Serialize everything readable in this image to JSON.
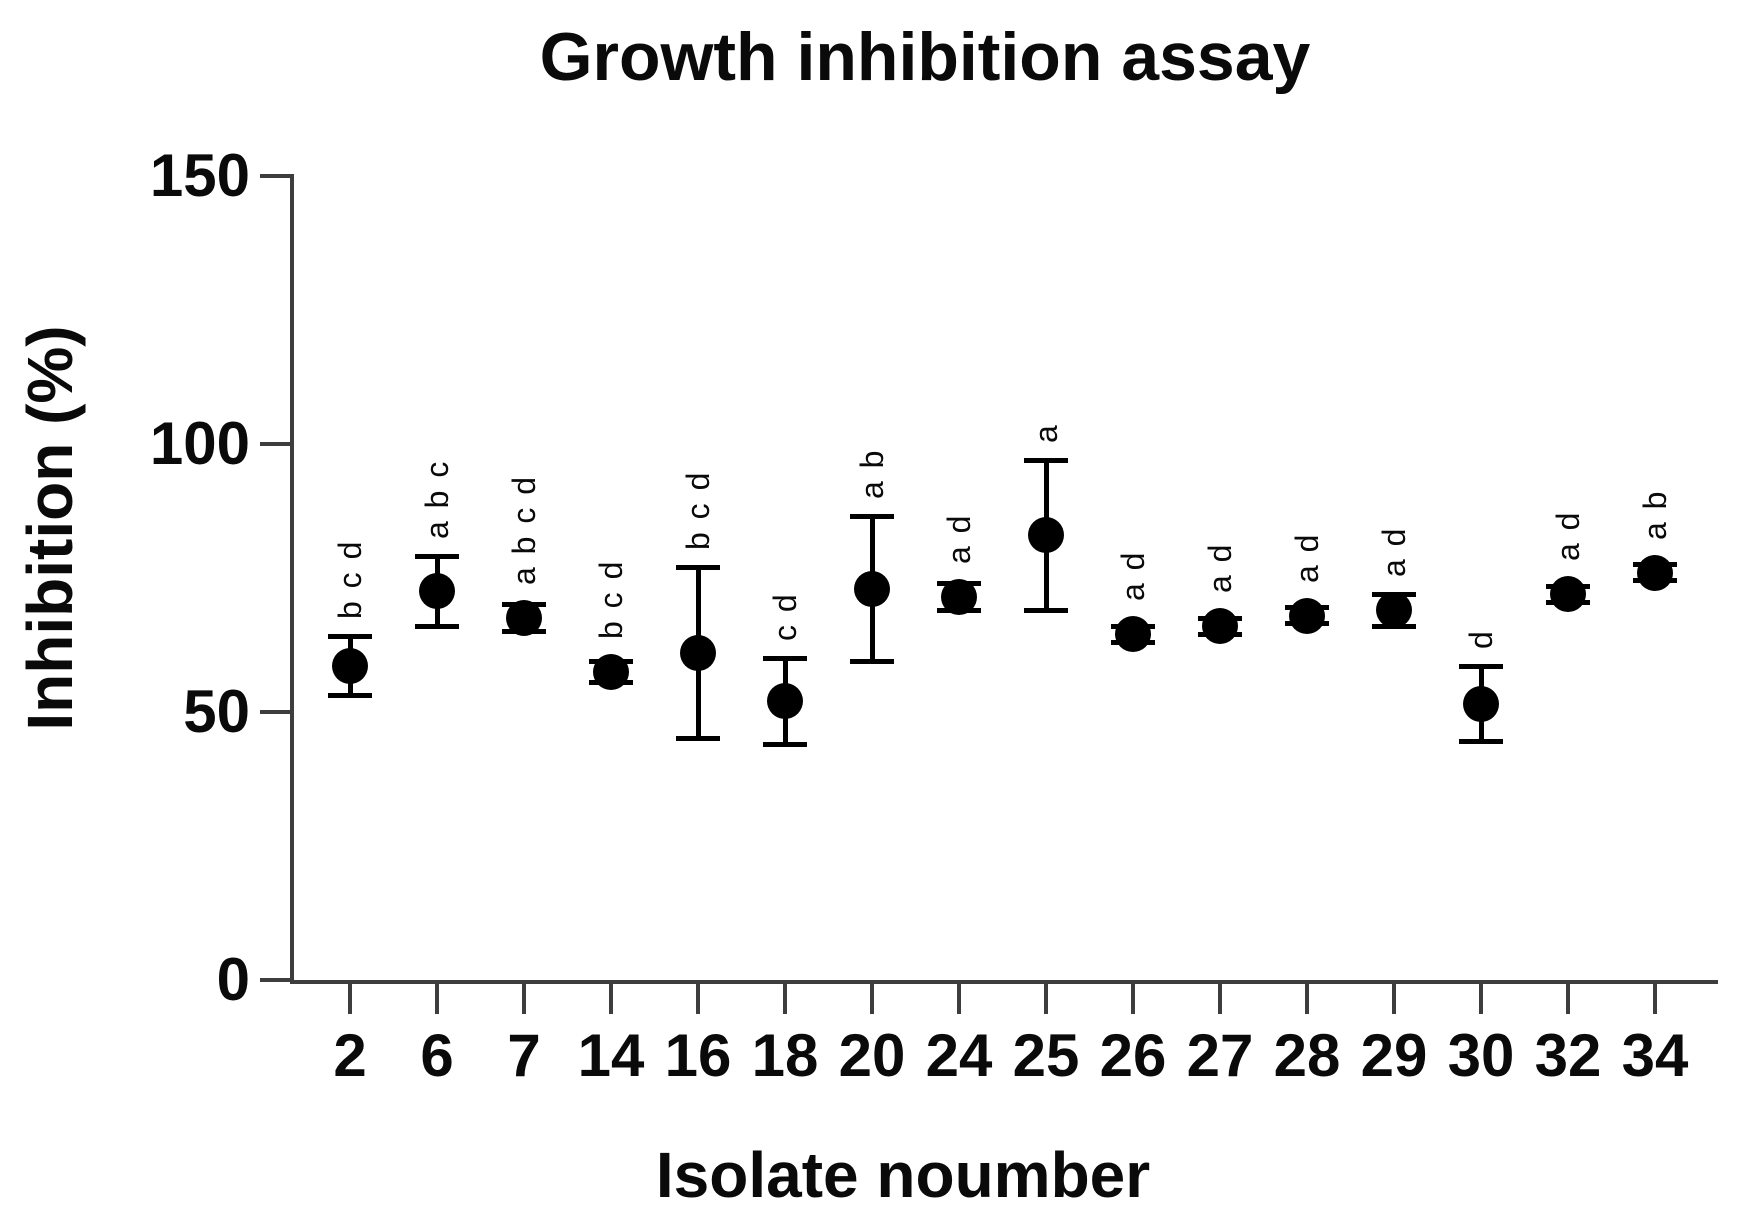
{
  "title": "Growth inhibition assay",
  "colors": {
    "background": "#ffffff",
    "marker": "#000000",
    "axis": "#3d3d3d",
    "text": "#0a0a0a"
  },
  "chart_data": {
    "type": "scatter",
    "title": "Growth inhibition assay",
    "xlabel": "Isolate noumber",
    "ylabel": "Inhibition (%)",
    "ylim": [
      0,
      150
    ],
    "yticks": [
      0,
      50,
      100,
      150
    ],
    "grid": false,
    "legend": "none",
    "marker_shape": "filled-circle",
    "error_bars": "symmetric, with caps",
    "categories": [
      "2",
      "6",
      "7",
      "14",
      "16",
      "18",
      "20",
      "24",
      "25",
      "26",
      "27",
      "28",
      "29",
      "30",
      "32",
      "34"
    ],
    "points": [
      {
        "isolate": "2",
        "mean": 58.5,
        "error": 5.5,
        "letters": "b c d"
      },
      {
        "isolate": "6",
        "mean": 72.5,
        "error": 6.5,
        "letters": "a b c"
      },
      {
        "isolate": "7",
        "mean": 67.5,
        "error": 2.5,
        "letters": "a b c d"
      },
      {
        "isolate": "14",
        "mean": 57.5,
        "error": 2,
        "letters": "b c d"
      },
      {
        "isolate": "16",
        "mean": 61,
        "error": 16,
        "letters": "b c d"
      },
      {
        "isolate": "18",
        "mean": 52,
        "error": 8,
        "letters": "c d"
      },
      {
        "isolate": "20",
        "mean": 73,
        "error": 13.5,
        "letters": "a b"
      },
      {
        "isolate": "24",
        "mean": 71.5,
        "error": 2.5,
        "letters": "a d"
      },
      {
        "isolate": "25",
        "mean": 83,
        "error": 14,
        "letters": "a"
      },
      {
        "isolate": "26",
        "mean": 64.5,
        "error": 1.5,
        "letters": "a d"
      },
      {
        "isolate": "27",
        "mean": 66,
        "error": 1.5,
        "letters": "a d"
      },
      {
        "isolate": "28",
        "mean": 68,
        "error": 1.5,
        "letters": "a d"
      },
      {
        "isolate": "29",
        "mean": 69,
        "error": 3,
        "letters": "a d"
      },
      {
        "isolate": "30",
        "mean": 51.5,
        "error": 7,
        "letters": "d"
      },
      {
        "isolate": "32",
        "mean": 72,
        "error": 1.5,
        "letters": "a d"
      },
      {
        "isolate": "34",
        "mean": 76,
        "error": 1.5,
        "letters": "a b"
      }
    ]
  }
}
